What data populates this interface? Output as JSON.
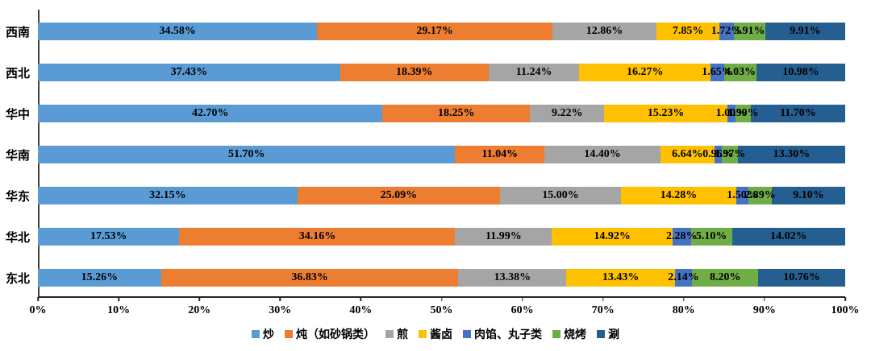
{
  "chart_data": {
    "type": "bar",
    "orientation": "horizontal",
    "stacked": true,
    "title": "",
    "xlabel": "",
    "ylabel": "",
    "xlim": [
      0,
      100
    ],
    "grid": false,
    "legend_position": "bottom",
    "value_label_format": "two decimals + %",
    "categories": [
      "西南",
      "西北",
      "华中",
      "华南",
      "华东",
      "华北",
      "东北"
    ],
    "x_ticks": [
      "0%",
      "10%",
      "20%",
      "30%",
      "40%",
      "50%",
      "60%",
      "70%",
      "80%",
      "90%",
      "100%"
    ],
    "series": [
      {
        "name": "炒",
        "color": "#5B9BD5",
        "values": [
          34.58,
          37.43,
          42.7,
          51.7,
          32.15,
          17.53,
          15.26
        ]
      },
      {
        "name": "炖（如砂锅类）",
        "color": "#ED7D31",
        "values": [
          29.17,
          18.39,
          18.25,
          11.04,
          25.09,
          34.16,
          36.83
        ]
      },
      {
        "name": "煎",
        "color": "#A5A5A5",
        "values": [
          12.86,
          11.24,
          9.22,
          14.4,
          15.0,
          11.99,
          13.38
        ]
      },
      {
        "name": "酱卤",
        "color": "#FFC000",
        "values": [
          7.85,
          16.27,
          15.23,
          6.64,
          14.28,
          14.92,
          13.43
        ]
      },
      {
        "name": "肉馅、丸子类",
        "color": "#4472C4",
        "values": [
          1.72,
          1.65,
          1.0,
          0.96,
          1.5,
          2.28,
          2.14
        ]
      },
      {
        "name": "烧烤",
        "color": "#70AD47",
        "values": [
          3.91,
          4.03,
          1.9,
          1.97,
          2.89,
          5.1,
          8.2
        ]
      },
      {
        "name": "涮",
        "color": "#255E91",
        "values": [
          9.91,
          10.98,
          11.7,
          13.3,
          9.1,
          14.02,
          10.76
        ]
      }
    ]
  },
  "style": {
    "background": "#ffffff",
    "axis_color": "#262626",
    "label_color": "#000000"
  }
}
